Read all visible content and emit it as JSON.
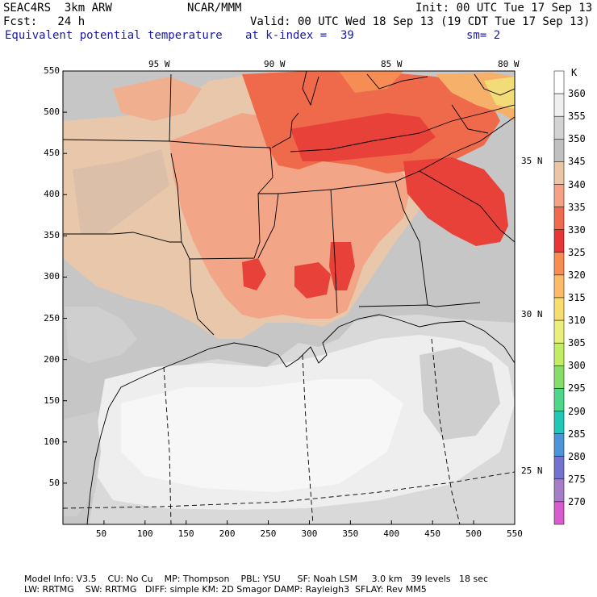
{
  "header": {
    "line1_left": "SEAC4RS  3km ARW",
    "line1_mid": "NCAR/MMM",
    "line1_right": "Init: 00 UTC Tue 17 Sep 13",
    "line2_left": "Fcst:   24 h",
    "line2_right": "Valid: 00 UTC Wed 18 Sep 13 (19 CDT Tue 17 Sep 13)",
    "line3_field": "Equivalent potential temperature",
    "line3_level": "at k-index =  39",
    "line3_sm": "sm= 2"
  },
  "x_ticks": [
    "50",
    "100",
    "150",
    "200",
    "250",
    "300",
    "350",
    "400",
    "450",
    "500",
    "550"
  ],
  "y_ticks": [
    "50",
    "100",
    "150",
    "200",
    "250",
    "300",
    "350",
    "400",
    "450",
    "500",
    "550"
  ],
  "lon_labels": [
    "95 W",
    "90 W",
    "85 W",
    "80 W"
  ],
  "lat_labels": [
    "35 N",
    "30 N",
    "25 N"
  ],
  "colorbar": {
    "unit": "K",
    "levels": [
      "360",
      "355",
      "350",
      "345",
      "340",
      "335",
      "330",
      "325",
      "320",
      "315",
      "310",
      "305",
      "300",
      "295",
      "290",
      "285",
      "280",
      "275",
      "270"
    ],
    "colors": [
      "#ffffff",
      "#efefef",
      "#d3d3d3",
      "#c0c0c0",
      "#ecc5a4",
      "#f5a186",
      "#f06a4c",
      "#e93535",
      "#f88c52",
      "#fdbb68",
      "#f7dd6e",
      "#e9ef7a",
      "#c2ec64",
      "#87dd6a",
      "#4ed68b",
      "#22c7b9",
      "#4d95d9",
      "#7373cf",
      "#a47ec7",
      "#d85ccd"
    ]
  },
  "footer": {
    "line1": "Model Info: V3.5    CU: No Cu    MP: Thompson    PBL: YSU      SF: Noah LSM     3.0 km   39 levels   18 sec",
    "line2": "LW: RRTMG    SW: RRTMG   DIFF: simple KM: 2D Smagor DAMP: Rayleigh3  SFLAY: Rev MM5"
  }
}
